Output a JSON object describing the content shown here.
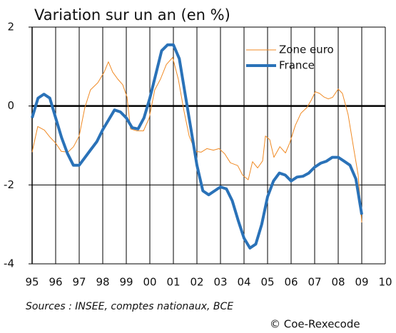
{
  "chart_data": {
    "type": "line",
    "title": "Variation sur un an (en %)",
    "source": "Sources : INSEE, comptes nationaux, BCE",
    "credit": "© Coe-Rexecode",
    "xlim": [
      1995,
      2010
    ],
    "xticks": [
      {
        "value": 1995,
        "label": "95"
      },
      {
        "value": 1996,
        "label": "96"
      },
      {
        "value": 1997,
        "label": "97"
      },
      {
        "value": 1998,
        "label": "98"
      },
      {
        "value": 1999,
        "label": "99"
      },
      {
        "value": 2000,
        "label": "00"
      },
      {
        "value": 2001,
        "label": "01"
      },
      {
        "value": 2002,
        "label": "02"
      },
      {
        "value": 2003,
        "label": "03"
      },
      {
        "value": 2004,
        "label": "04"
      },
      {
        "value": 2005,
        "label": "05"
      },
      {
        "value": 2006,
        "label": "06"
      },
      {
        "value": 2007,
        "label": "07"
      },
      {
        "value": 2008,
        "label": "08"
      },
      {
        "value": 2009,
        "label": "09"
      },
      {
        "value": 2010,
        "label": "10"
      }
    ],
    "ylim": [
      -4,
      2
    ],
    "yticks": [
      -4,
      -2,
      0,
      2
    ],
    "grid": true,
    "legend": "top-right",
    "series": [
      {
        "name": "Zone euro",
        "color": "#f08a24",
        "width": 1,
        "x": [
          1995.0,
          1995.24,
          1995.52,
          1995.76,
          1996.0,
          1996.24,
          1996.52,
          1996.76,
          1997.0,
          1997.24,
          1997.48,
          1997.79,
          1998.06,
          1998.24,
          1998.42,
          1998.64,
          1998.85,
          1999.03,
          1999.18,
          1999.45,
          1999.73,
          1999.97,
          2000.21,
          2000.45,
          2000.7,
          2000.97,
          2001.21,
          2001.45,
          2001.67,
          2001.94,
          2002.18,
          2002.42,
          2002.7,
          2002.94,
          2003.18,
          2003.42,
          2003.73,
          2003.94,
          2004.18,
          2004.36,
          2004.58,
          2004.79,
          2004.91,
          2005.09,
          2005.27,
          2005.52,
          2005.76,
          2005.94,
          2006.18,
          2006.42,
          2006.67,
          2006.85,
          2007.03,
          2007.21,
          2007.39,
          2007.58,
          2007.76,
          2008.0,
          2008.18,
          2008.42,
          2008.67,
          2008.85,
          2009.0
        ],
        "values": [
          -1.17,
          -0.52,
          -0.61,
          -0.79,
          -0.94,
          -1.15,
          -1.17,
          -1.03,
          -0.76,
          -0.04,
          0.41,
          0.59,
          0.86,
          1.12,
          0.86,
          0.68,
          0.54,
          0.23,
          -0.58,
          -0.63,
          -0.63,
          -0.31,
          0.41,
          0.68,
          1.05,
          1.23,
          0.68,
          -0.13,
          -0.76,
          -1.15,
          -1.17,
          -1.08,
          -1.12,
          -1.08,
          -1.21,
          -1.44,
          -1.51,
          -1.75,
          -1.87,
          -1.41,
          -1.57,
          -1.39,
          -0.76,
          -0.85,
          -1.3,
          -1.03,
          -1.19,
          -0.94,
          -0.49,
          -0.18,
          -0.04,
          0.14,
          0.36,
          0.32,
          0.23,
          0.18,
          0.22,
          0.43,
          0.32,
          -0.22,
          -1.12,
          -1.75,
          -2.95
        ]
      },
      {
        "name": "France",
        "color": "#2a72b8",
        "width": 4,
        "x": [
          1995,
          1995.25,
          1995.5,
          1995.75,
          1996,
          1996.25,
          1996.5,
          1996.75,
          1997,
          1997.25,
          1997.5,
          1997.75,
          1998,
          1998.25,
          1998.5,
          1998.75,
          1999,
          1999.25,
          1999.5,
          1999.75,
          2000,
          2000.25,
          2000.5,
          2000.75,
          2001,
          2001.25,
          2001.5,
          2001.75,
          2002,
          2002.25,
          2002.5,
          2002.75,
          2003,
          2003.25,
          2003.5,
          2003.75,
          2004,
          2004.25,
          2004.5,
          2004.75,
          2005,
          2005.25,
          2005.5,
          2005.75,
          2006,
          2006.25,
          2006.5,
          2006.75,
          2007,
          2007.25,
          2007.5,
          2007.75,
          2008,
          2008.25,
          2008.5,
          2008.75,
          2009
        ],
        "values": [
          -0.3,
          0.2,
          0.3,
          0.2,
          -0.3,
          -0.8,
          -1.2,
          -1.5,
          -1.5,
          -1.3,
          -1.1,
          -0.9,
          -0.6,
          -0.35,
          -0.1,
          -0.15,
          -0.3,
          -0.55,
          -0.58,
          -0.3,
          0.2,
          0.8,
          1.4,
          1.55,
          1.55,
          1.2,
          0.3,
          -0.6,
          -1.5,
          -2.15,
          -2.25,
          -2.15,
          -2.05,
          -2.1,
          -2.4,
          -2.9,
          -3.35,
          -3.6,
          -3.5,
          -3.0,
          -2.3,
          -1.9,
          -1.7,
          -1.75,
          -1.9,
          -1.8,
          -1.78,
          -1.7,
          -1.55,
          -1.45,
          -1.4,
          -1.3,
          -1.3,
          -1.4,
          -1.5,
          -1.85,
          -2.75
        ]
      }
    ]
  }
}
